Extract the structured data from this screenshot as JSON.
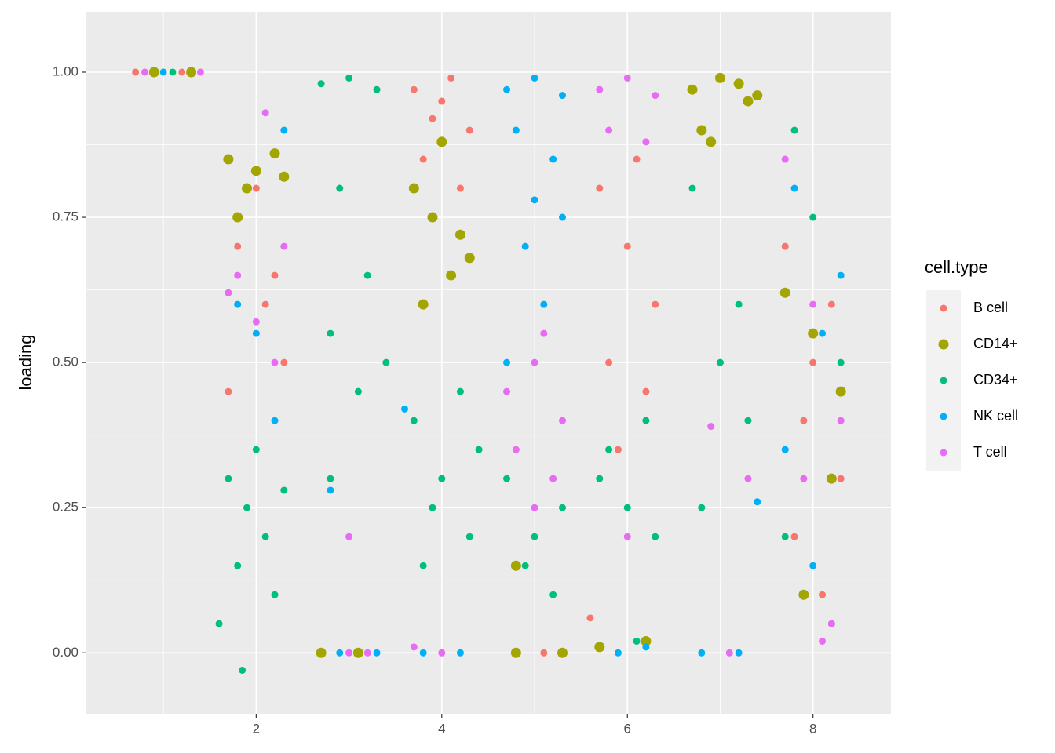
{
  "chart_data": {
    "type": "scatter",
    "y_label": "loading",
    "legend_title": "cell.type",
    "legend_position": "right",
    "grid": true,
    "xlim": [
      0.17,
      8.84
    ],
    "ylim": [
      -0.105,
      1.104
    ],
    "xticks": [
      2,
      4,
      6,
      8
    ],
    "yticks": [
      {
        "value": 0,
        "label": "0.00"
      },
      {
        "value": 0.25,
        "label": "0.25"
      },
      {
        "value": 0.5,
        "label": "0.50"
      },
      {
        "value": 0.75,
        "label": "0.75"
      },
      {
        "value": 1,
        "label": "1.00"
      }
    ],
    "series": [
      {
        "name": "B cell",
        "color": "#F8766D",
        "size": 4.5,
        "x": [
          0.7,
          1.2,
          1.8,
          2.1,
          2.3,
          1.7,
          2.0,
          2.2,
          3.7,
          4.0,
          4.3,
          3.8,
          4.2,
          4.1,
          3.9,
          5.1,
          5.7,
          6.0,
          6.3,
          5.8,
          6.2,
          6.1,
          5.9,
          5.6,
          7.7,
          8.0,
          8.3,
          7.8,
          8.2,
          8.1,
          7.9
        ],
        "y": [
          1,
          1,
          0.7,
          0.6,
          0.5,
          0.45,
          0.8,
          0.65,
          0.97,
          0.95,
          0.9,
          0.85,
          0.8,
          0.99,
          0.92,
          0.0,
          0.8,
          0.7,
          0.6,
          0.5,
          0.45,
          0.85,
          0.35,
          0.06,
          0.7,
          0.5,
          0.3,
          0.2,
          0.6,
          0.1,
          0.4
        ]
      },
      {
        "name": "CD14+",
        "color": "#A3A500",
        "size": 6.5,
        "x": [
          0.9,
          1.3,
          1.7,
          2.0,
          2.3,
          1.9,
          2.2,
          1.8,
          2.7,
          3.1,
          3.7,
          3.9,
          4.2,
          4.3,
          3.8,
          4.0,
          4.1,
          4.8,
          5.3,
          4.8,
          5.7,
          6.2,
          6.7,
          7.0,
          7.3,
          6.8,
          7.2,
          7.4,
          6.9,
          7.7,
          8.2,
          7.9,
          8.3,
          8.0
        ],
        "y": [
          1,
          1,
          0.85,
          0.83,
          0.82,
          0.8,
          0.86,
          0.75,
          0,
          0,
          0.8,
          0.75,
          0.72,
          0.68,
          0.6,
          0.88,
          0.65,
          0,
          0,
          0.15,
          0.01,
          0.02,
          0.97,
          0.99,
          0.95,
          0.9,
          0.98,
          0.96,
          0.88,
          0.62,
          0.3,
          0.1,
          0.45,
          0.55
        ]
      },
      {
        "name": "CD34+",
        "color": "#00BF7D",
        "size": 4.5,
        "x": [
          1.1,
          1.7,
          1.9,
          2.1,
          2.3,
          1.8,
          2.0,
          2.2,
          1.6,
          1.85,
          2.7,
          3.0,
          3.3,
          2.9,
          3.2,
          2.8,
          3.1,
          3.4,
          2.8,
          3.7,
          4.0,
          4.3,
          3.8,
          4.2,
          3.9,
          4.4,
          4.7,
          5.0,
          5.3,
          4.9,
          5.2,
          5.7,
          6.0,
          6.3,
          5.8,
          6.2,
          6.1,
          7.0,
          7.3,
          6.8,
          7.2,
          6.7,
          7.8,
          8.0,
          8.3,
          7.7,
          8.2
        ],
        "y": [
          1,
          0.3,
          0.25,
          0.2,
          0.28,
          0.15,
          0.35,
          0.1,
          0.05,
          -0.03,
          0.98,
          0.99,
          0.97,
          0.8,
          0.65,
          0.55,
          0.45,
          0.5,
          0.3,
          0.4,
          0.3,
          0.2,
          0.15,
          0.45,
          0.25,
          0.35,
          0.3,
          0.2,
          0.25,
          0.15,
          0.1,
          0.3,
          0.25,
          0.2,
          0.35,
          0.4,
          0.02,
          0.5,
          0.4,
          0.25,
          0.6,
          0.8,
          0.9,
          0.75,
          0.5,
          0.2,
          0.05
        ]
      },
      {
        "name": "NK cell",
        "color": "#00B0F6",
        "size": 4.5,
        "x": [
          1.0,
          2.0,
          2.2,
          1.8,
          2.3,
          2.9,
          3.3,
          2.8,
          3.8,
          4.2,
          3.6,
          4.7,
          5.0,
          5.3,
          4.8,
          5.2,
          5.0,
          4.9,
          5.3,
          5.1,
          4.7,
          5.9,
          6.2,
          6.8,
          7.2,
          7.4,
          7.8,
          8.1,
          8.3,
          7.7,
          8.0
        ],
        "y": [
          1,
          0.55,
          0.4,
          0.6,
          0.9,
          0,
          0,
          0.28,
          0,
          0,
          0.42,
          0.97,
          0.99,
          0.96,
          0.9,
          0.85,
          0.78,
          0.7,
          0.75,
          0.6,
          0.5,
          0,
          0.01,
          0,
          0,
          0.26,
          0.8,
          0.55,
          0.65,
          0.35,
          0.15
        ]
      },
      {
        "name": "T cell",
        "color": "#E76BF3",
        "size": 4.5,
        "x": [
          0.8,
          1.4,
          1.8,
          2.0,
          2.2,
          1.7,
          2.3,
          2.1,
          3.0,
          3.2,
          3.0,
          4.0,
          3.7,
          4.7,
          5.0,
          5.3,
          4.8,
          5.2,
          5.0,
          5.1,
          5.7,
          6.0,
          6.3,
          5.8,
          6.2,
          6.0,
          6.9,
          7.3,
          7.1,
          7.7,
          8.0,
          8.3,
          7.9,
          8.2,
          8.1
        ],
        "y": [
          1,
          1,
          0.65,
          0.57,
          0.5,
          0.62,
          0.7,
          0.93,
          0,
          0,
          0.2,
          0,
          0.01,
          0.45,
          0.5,
          0.4,
          0.35,
          0.3,
          0.25,
          0.55,
          0.97,
          0.99,
          0.96,
          0.9,
          0.88,
          0.2,
          0.39,
          0.3,
          0,
          0.85,
          0.6,
          0.4,
          0.3,
          0.05,
          0.02
        ]
      }
    ]
  }
}
